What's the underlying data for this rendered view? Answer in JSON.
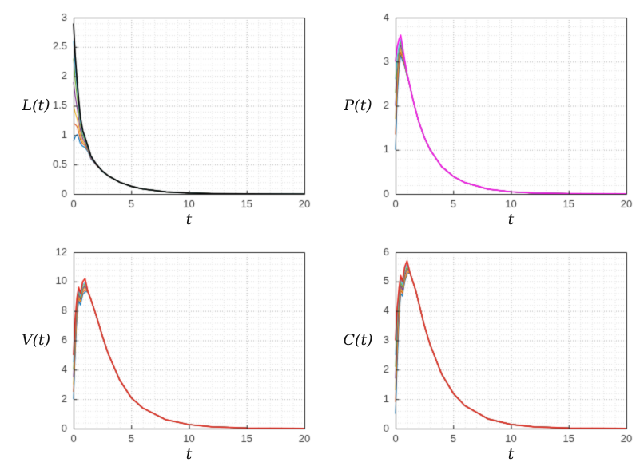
{
  "figure": {
    "background": "#ffffff",
    "axis_color": "#2b2b2b",
    "tick_label_color": "#3a3a3a",
    "grid_major_color": "#bfbfbf",
    "grid_minor_color": "#e3e3e3"
  },
  "chart_data": [
    {
      "type": "line",
      "name": "L",
      "title": "",
      "ylabel": "L(t)",
      "xlabel": "t",
      "xlim": [
        0,
        20
      ],
      "ylim": [
        0,
        3
      ],
      "xticks": [
        0,
        5,
        10,
        15,
        20
      ],
      "xtick_labels": [
        "0",
        "5",
        "10",
        "15",
        "20"
      ],
      "yticks": [
        0,
        0.5,
        1,
        1.5,
        2,
        2.5,
        3
      ],
      "ytick_labels": [
        "0",
        "0.5",
        "1",
        "1.5",
        "2",
        "2.5",
        "3"
      ],
      "grid": "on",
      "legend": false,
      "x": [
        0,
        0.15,
        0.3,
        0.45,
        0.6,
        0.8,
        1,
        1.25,
        1.5,
        1.75,
        2,
        2.5,
        3,
        4,
        5,
        6,
        8,
        10,
        12,
        15,
        20
      ],
      "series": [
        {
          "color": "#0072BD",
          "y": [
            0.9,
            0.97,
            1.01,
            0.95,
            0.85,
            0.81,
            0.79,
            0.72,
            0.6,
            0.54,
            0.49,
            0.38,
            0.31,
            0.2,
            0.13,
            0.085,
            0.036,
            0.016,
            0.007,
            0.002,
            0.0
          ]
        },
        {
          "color": "#D95319",
          "y": [
            1.2,
            1.18,
            1.15,
            1.05,
            0.92,
            0.85,
            0.82,
            0.74,
            0.61,
            0.55,
            0.49,
            0.38,
            0.31,
            0.2,
            0.13,
            0.085,
            0.036,
            0.016,
            0.007,
            0.002,
            0.0
          ]
        },
        {
          "color": "#EDB120",
          "y": [
            1.5,
            1.38,
            1.29,
            1.15,
            0.99,
            0.89,
            0.84,
            0.75,
            0.62,
            0.55,
            0.49,
            0.38,
            0.31,
            0.2,
            0.13,
            0.085,
            0.036,
            0.016,
            0.007,
            0.002,
            0.0
          ]
        },
        {
          "color": "#7E2F8E",
          "y": [
            1.9,
            1.66,
            1.48,
            1.28,
            1.08,
            0.94,
            0.87,
            0.76,
            0.62,
            0.55,
            0.49,
            0.38,
            0.31,
            0.2,
            0.13,
            0.085,
            0.036,
            0.016,
            0.007,
            0.002,
            0.0
          ]
        },
        {
          "color": "#77AC30",
          "y": [
            2.3,
            1.93,
            1.67,
            1.41,
            1.17,
            0.99,
            0.91,
            0.78,
            0.64,
            0.56,
            0.5,
            0.38,
            0.31,
            0.2,
            0.13,
            0.085,
            0.036,
            0.016,
            0.007,
            0.002,
            0.0
          ]
        },
        {
          "color": "#4DBEEE",
          "y": [
            2.6,
            2.14,
            1.81,
            1.51,
            1.23,
            1.04,
            0.93,
            0.79,
            0.64,
            0.56,
            0.5,
            0.38,
            0.31,
            0.2,
            0.13,
            0.085,
            0.036,
            0.016,
            0.007,
            0.002,
            0.0
          ]
        },
        {
          "color": "#000000",
          "y": [
            2.9,
            2.34,
            1.95,
            1.6,
            1.3,
            1.08,
            0.96,
            0.81,
            0.65,
            0.57,
            0.5,
            0.39,
            0.31,
            0.2,
            0.13,
            0.085,
            0.036,
            0.016,
            0.007,
            0.002,
            0.0
          ]
        }
      ]
    },
    {
      "type": "line",
      "name": "P",
      "title": "",
      "ylabel": "P(t)",
      "xlabel": "t",
      "xlim": [
        0,
        20
      ],
      "ylim": [
        0,
        4
      ],
      "xticks": [
        0,
        5,
        10,
        15,
        20
      ],
      "xtick_labels": [
        "0",
        "5",
        "10",
        "15",
        "20"
      ],
      "yticks": [
        0,
        1,
        2,
        3,
        4
      ],
      "ytick_labels": [
        "0",
        "1",
        "2",
        "3",
        "4"
      ],
      "grid": "on",
      "legend": false,
      "x": [
        0,
        0.15,
        0.3,
        0.45,
        0.6,
        0.8,
        1,
        1.25,
        1.5,
        1.75,
        2,
        2.5,
        3,
        4,
        5,
        6,
        8,
        10,
        12,
        15,
        20
      ],
      "series": [
        {
          "color": "#0072BD",
          "y": [
            1.0,
            2.18,
            2.83,
            3.15,
            3.02,
            2.88,
            2.67,
            2.45,
            2.15,
            1.9,
            1.65,
            1.28,
            1.0,
            0.62,
            0.4,
            0.26,
            0.11,
            0.05,
            0.02,
            0.007,
            0.001
          ]
        },
        {
          "color": "#D95319",
          "y": [
            1.35,
            2.38,
            2.94,
            3.22,
            3.08,
            2.91,
            2.68,
            2.45,
            2.15,
            1.9,
            1.65,
            1.28,
            1.0,
            0.62,
            0.4,
            0.26,
            0.11,
            0.05,
            0.02,
            0.007,
            0.001
          ]
        },
        {
          "color": "#EDB120",
          "y": [
            1.7,
            2.58,
            3.06,
            3.3,
            3.14,
            2.93,
            2.69,
            2.45,
            2.15,
            1.9,
            1.65,
            1.28,
            1.0,
            0.62,
            0.4,
            0.26,
            0.11,
            0.05,
            0.02,
            0.007,
            0.001
          ]
        },
        {
          "color": "#7E2F8E",
          "y": [
            2.0,
            2.76,
            3.17,
            3.38,
            3.2,
            2.95,
            2.7,
            2.45,
            2.15,
            1.9,
            1.65,
            1.28,
            1.0,
            0.62,
            0.4,
            0.26,
            0.11,
            0.05,
            0.02,
            0.007,
            0.001
          ]
        },
        {
          "color": "#77AC30",
          "y": [
            2.3,
            2.93,
            3.28,
            3.45,
            3.26,
            2.97,
            2.71,
            2.45,
            2.15,
            1.9,
            1.65,
            1.28,
            1.0,
            0.62,
            0.4,
            0.26,
            0.11,
            0.05,
            0.02,
            0.007,
            0.001
          ]
        },
        {
          "color": "#4DBEEE",
          "y": [
            2.6,
            3.1,
            3.37,
            3.5,
            3.3,
            2.99,
            2.72,
            2.45,
            2.15,
            1.9,
            1.65,
            1.28,
            1.0,
            0.62,
            0.4,
            0.26,
            0.11,
            0.05,
            0.02,
            0.007,
            0.001
          ]
        },
        {
          "color": "#F318E4",
          "y": [
            3.0,
            3.33,
            3.5,
            3.6,
            3.36,
            3.02,
            2.73,
            2.45,
            2.15,
            1.9,
            1.65,
            1.28,
            1.0,
            0.62,
            0.4,
            0.26,
            0.11,
            0.05,
            0.02,
            0.007,
            0.001
          ]
        }
      ]
    },
    {
      "type": "line",
      "name": "V",
      "title": "",
      "ylabel": "V(t)",
      "xlabel": "t",
      "xlim": [
        0,
        20
      ],
      "ylim": [
        0,
        12
      ],
      "xticks": [
        0,
        5,
        10,
        15,
        20
      ],
      "xtick_labels": [
        "0",
        "5",
        "10",
        "15",
        "20"
      ],
      "yticks": [
        0,
        2,
        4,
        6,
        8,
        10,
        12
      ],
      "ytick_labels": [
        "0",
        "2",
        "4",
        "6",
        "8",
        "10",
        "12"
      ],
      "grid": "on",
      "legend": false,
      "x": [
        0,
        0.15,
        0.3,
        0.45,
        0.6,
        0.8,
        1,
        1.25,
        1.5,
        1.75,
        2,
        2.5,
        3,
        4,
        5,
        6,
        8,
        10,
        12,
        15,
        20
      ],
      "series": [
        {
          "color": "#0072BD",
          "y": [
            2.0,
            5.2,
            7.6,
            8.7,
            8.4,
            9.1,
            9.3,
            9.3,
            8.8,
            8.2,
            7.6,
            6.3,
            5.1,
            3.3,
            2.1,
            1.4,
            0.6,
            0.27,
            0.12,
            0.04,
            0.005
          ]
        },
        {
          "color": "#D95319",
          "y": [
            2.5,
            5.6,
            7.9,
            8.9,
            8.6,
            9.25,
            9.45,
            9.3,
            8.8,
            8.2,
            7.6,
            6.3,
            5.1,
            3.3,
            2.1,
            1.4,
            0.6,
            0.27,
            0.12,
            0.04,
            0.005
          ]
        },
        {
          "color": "#EDB120",
          "y": [
            3.0,
            6.0,
            8.1,
            9.0,
            8.7,
            9.4,
            9.6,
            9.3,
            8.8,
            8.2,
            7.6,
            6.3,
            5.1,
            3.3,
            2.1,
            1.4,
            0.6,
            0.27,
            0.12,
            0.04,
            0.005
          ]
        },
        {
          "color": "#7E2F8E",
          "y": [
            3.5,
            6.4,
            8.3,
            9.15,
            8.8,
            9.5,
            9.7,
            9.3,
            8.8,
            8.2,
            7.6,
            6.3,
            5.1,
            3.3,
            2.1,
            1.4,
            0.6,
            0.27,
            0.12,
            0.04,
            0.005
          ]
        },
        {
          "color": "#77AC30",
          "y": [
            4.0,
            6.8,
            8.5,
            9.3,
            8.9,
            9.6,
            9.85,
            9.3,
            8.8,
            8.2,
            7.6,
            6.3,
            5.1,
            3.3,
            2.1,
            1.4,
            0.6,
            0.27,
            0.12,
            0.04,
            0.005
          ]
        },
        {
          "color": "#4DBEEE",
          "y": [
            4.5,
            7.1,
            8.7,
            9.4,
            9.0,
            9.75,
            9.95,
            9.3,
            8.8,
            8.2,
            7.6,
            6.3,
            5.1,
            3.3,
            2.1,
            1.4,
            0.6,
            0.27,
            0.12,
            0.04,
            0.005
          ]
        },
        {
          "color": "#E22D22",
          "y": [
            5.0,
            7.5,
            8.9,
            9.6,
            9.2,
            10.0,
            10.2,
            9.3,
            8.8,
            8.2,
            7.6,
            6.3,
            5.1,
            3.3,
            2.1,
            1.4,
            0.6,
            0.27,
            0.12,
            0.04,
            0.005
          ]
        }
      ]
    },
    {
      "type": "line",
      "name": "C",
      "title": "",
      "ylabel": "C(t)",
      "xlabel": "t",
      "xlim": [
        0,
        20
      ],
      "ylim": [
        0,
        6
      ],
      "xticks": [
        0,
        5,
        10,
        15,
        20
      ],
      "xtick_labels": [
        "0",
        "5",
        "10",
        "15",
        "20"
      ],
      "yticks": [
        0,
        1,
        2,
        3,
        4,
        5,
        6
      ],
      "ytick_labels": [
        "0",
        "1",
        "2",
        "3",
        "4",
        "5",
        "6"
      ],
      "grid": "on",
      "legend": false,
      "x": [
        0,
        0.15,
        0.3,
        0.45,
        0.6,
        0.8,
        1,
        1.25,
        1.5,
        1.75,
        2,
        2.5,
        3,
        4,
        5,
        6,
        8,
        10,
        12,
        15,
        20
      ],
      "series": [
        {
          "color": "#0072BD",
          "y": [
            0.5,
            2.2,
            3.7,
            4.6,
            4.5,
            5.0,
            5.25,
            5.3,
            5.0,
            4.7,
            4.3,
            3.5,
            2.85,
            1.85,
            1.2,
            0.78,
            0.33,
            0.14,
            0.06,
            0.018,
            0.002
          ]
        },
        {
          "color": "#D95319",
          "y": [
            0.9,
            2.6,
            3.9,
            4.7,
            4.6,
            5.05,
            5.3,
            5.3,
            5.0,
            4.7,
            4.3,
            3.5,
            2.85,
            1.85,
            1.2,
            0.78,
            0.33,
            0.14,
            0.06,
            0.018,
            0.002
          ]
        },
        {
          "color": "#EDB120",
          "y": [
            1.3,
            2.9,
            4.1,
            4.8,
            4.65,
            5.1,
            5.35,
            5.3,
            5.0,
            4.7,
            4.3,
            3.5,
            2.85,
            1.85,
            1.2,
            0.78,
            0.33,
            0.14,
            0.06,
            0.018,
            0.002
          ]
        },
        {
          "color": "#7E2F8E",
          "y": [
            1.7,
            3.2,
            4.3,
            4.9,
            4.7,
            5.2,
            5.45,
            5.3,
            5.0,
            4.7,
            4.3,
            3.5,
            2.85,
            1.85,
            1.2,
            0.78,
            0.33,
            0.14,
            0.06,
            0.018,
            0.002
          ]
        },
        {
          "color": "#77AC30",
          "y": [
            2.1,
            3.5,
            4.45,
            5.0,
            4.8,
            5.3,
            5.5,
            5.3,
            5.0,
            4.7,
            4.3,
            3.5,
            2.85,
            1.85,
            1.2,
            0.78,
            0.33,
            0.14,
            0.06,
            0.018,
            0.002
          ]
        },
        {
          "color": "#4DBEEE",
          "y": [
            2.5,
            3.8,
            4.6,
            5.1,
            4.9,
            5.4,
            5.6,
            5.3,
            5.0,
            4.7,
            4.3,
            3.5,
            2.85,
            1.85,
            1.2,
            0.78,
            0.33,
            0.14,
            0.06,
            0.018,
            0.002
          ]
        },
        {
          "color": "#E22D22",
          "y": [
            3.0,
            4.1,
            4.75,
            5.2,
            5.0,
            5.5,
            5.7,
            5.3,
            5.0,
            4.7,
            4.3,
            3.5,
            2.85,
            1.85,
            1.2,
            0.78,
            0.33,
            0.14,
            0.06,
            0.018,
            0.002
          ]
        }
      ]
    }
  ]
}
